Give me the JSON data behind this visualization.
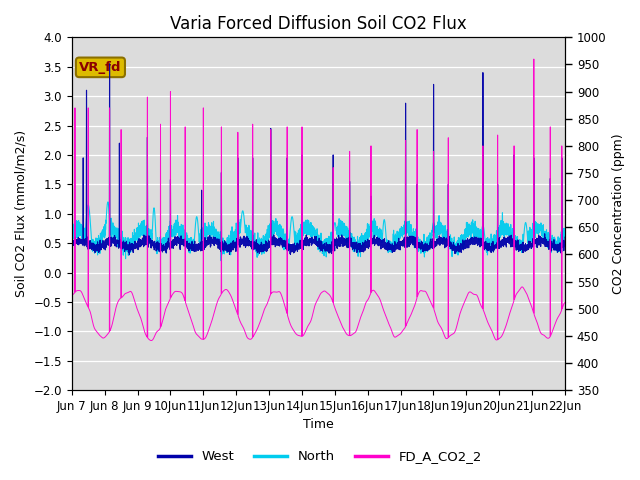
{
  "title": "Varia Forced Diffusion Soil CO2 Flux",
  "xlabel": "Time",
  "ylabel_left": "Soil CO2 Flux (mmol/m2/s)",
  "ylabel_right": "CO2 Concentration (ppm)",
  "ylim_left": [
    -2.0,
    4.0
  ],
  "ylim_right": [
    350,
    1000
  ],
  "yticks_left": [
    -2.0,
    -1.5,
    -1.0,
    -0.5,
    0.0,
    0.5,
    1.0,
    1.5,
    2.0,
    2.5,
    3.0,
    3.5,
    4.0
  ],
  "yticks_right": [
    350,
    400,
    450,
    500,
    550,
    600,
    650,
    700,
    750,
    800,
    850,
    900,
    950,
    1000
  ],
  "color_west": "#0000AA",
  "color_north": "#00CCEE",
  "color_co2": "#FF00CC",
  "background_color": "#DCDCDC",
  "annotation_text": "VR_fd",
  "annotation_bg": "#DDBB00",
  "annotation_border": "#8B7000",
  "legend_entries": [
    "West",
    "North",
    "FD_A_CO2_2"
  ],
  "n_days": 15,
  "seed": 42,
  "title_fontsize": 12,
  "label_fontsize": 9,
  "tick_fontsize": 8.5
}
